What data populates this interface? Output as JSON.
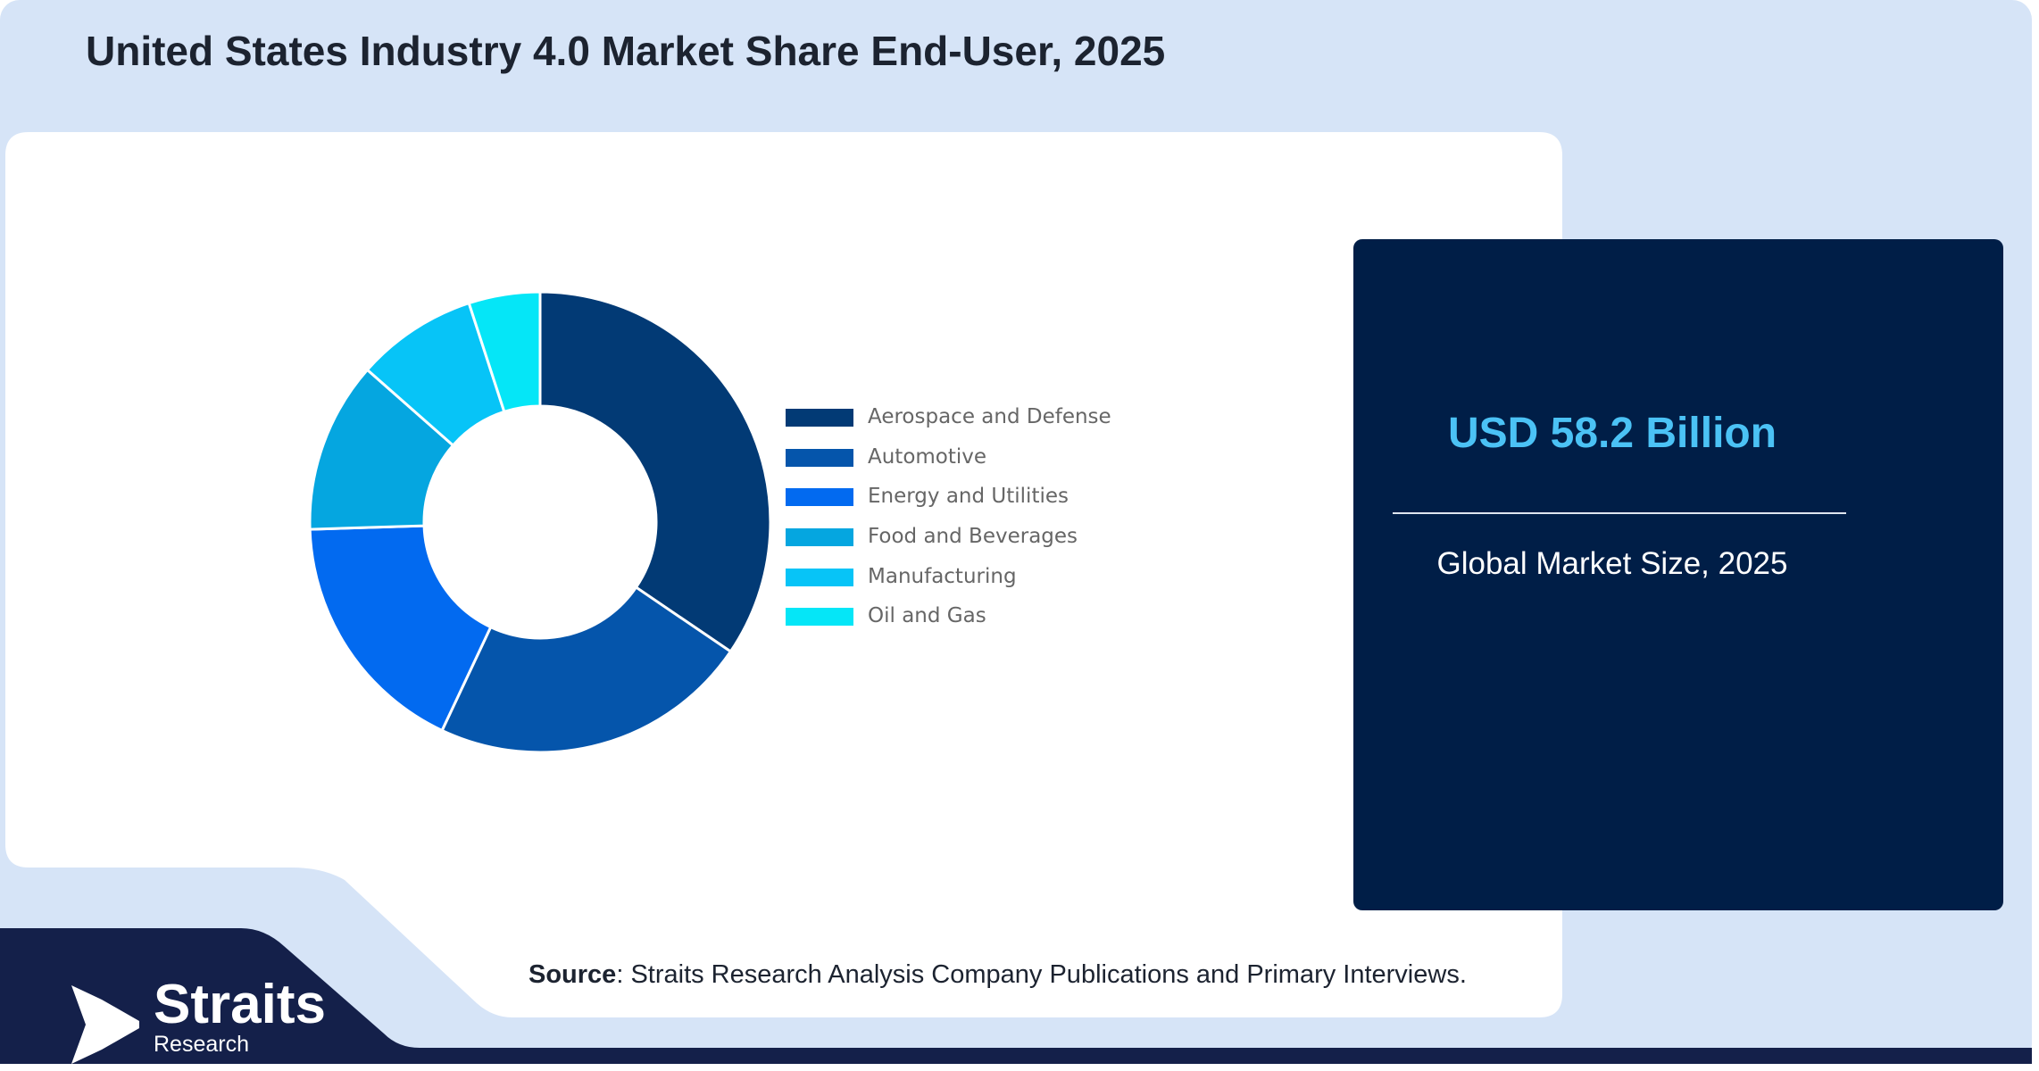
{
  "title": "United States Industry 4.0 Market Share End-User, 2025",
  "chart_data": {
    "type": "pie",
    "variant": "donut",
    "categories": [
      "Aerospace and Defense",
      "Automotive",
      "Energy and Utilities",
      "Food and Beverages",
      "Manufacturing",
      "Oil and Gas"
    ],
    "values": [
      34.5,
      22.5,
      17.5,
      12,
      8.5,
      5
    ],
    "colors": [
      "#023a75",
      "#0555ab",
      "#026af0",
      "#05a6e0",
      "#07c4f7",
      "#05e6f7"
    ],
    "legend_position": "right"
  },
  "stat": {
    "value": "USD 58.2 Billion",
    "label": "Global Market Size, 2025"
  },
  "source": {
    "label": "Source",
    "text": ": Straits Research Analysis Company Publications and Primary Interviews."
  },
  "logo": {
    "name": "Straits",
    "sub": "Research"
  },
  "colors": {
    "background": "#d6e4f7",
    "navy": "#001e47",
    "band": "#14204a",
    "accent": "#4bc2f5"
  }
}
